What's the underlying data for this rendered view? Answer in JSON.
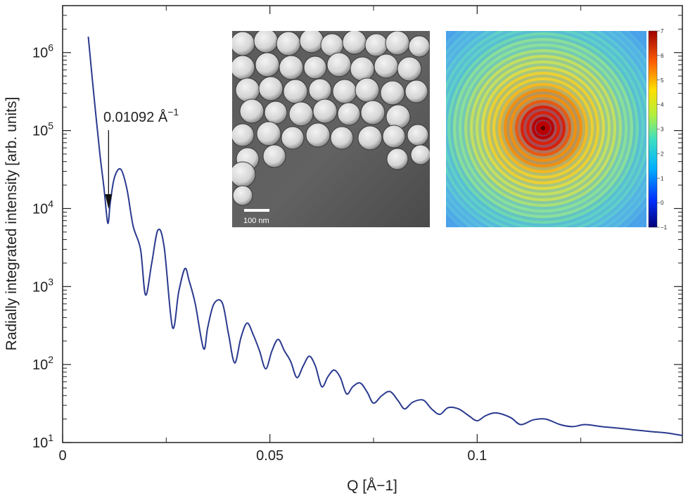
{
  "chart_data": {
    "type": "line",
    "xlabel": "Q [Å−1]",
    "ylabel": "Radially integrated intensity [arb. units]",
    "xlim": [
      0,
      0.1495
    ],
    "ylim": [
      10,
      4000000
    ],
    "yscale": "log",
    "x_ticks": [
      {
        "value": 0,
        "label": "0"
      },
      {
        "value": 0.05,
        "label": "0.05"
      },
      {
        "value": 0.1,
        "label": "0.1"
      }
    ],
    "y_ticks": [
      {
        "value": 10,
        "base": "10",
        "exp": "1"
      },
      {
        "value": 100,
        "base": "10",
        "exp": "2"
      },
      {
        "value": 1000,
        "base": "10",
        "exp": "3"
      },
      {
        "value": 10000,
        "base": "10",
        "exp": "4"
      },
      {
        "value": 100000,
        "base": "10",
        "exp": "5"
      },
      {
        "value": 1000000,
        "base": "10",
        "exp": "6"
      }
    ],
    "grid": false,
    "line_color": "#2a3a8f",
    "series": [
      {
        "x": [
          0.0062,
          0.0075,
          0.009,
          0.01,
          0.0109,
          0.0115,
          0.0125,
          0.014,
          0.0155,
          0.017,
          0.0188,
          0.02,
          0.0215,
          0.023,
          0.0245,
          0.0265,
          0.028,
          0.0295,
          0.0305,
          0.032,
          0.034,
          0.035,
          0.0365,
          0.0385,
          0.04,
          0.0415,
          0.043,
          0.0445,
          0.046,
          0.0475,
          0.049,
          0.0505,
          0.052,
          0.0535,
          0.055,
          0.0565,
          0.058,
          0.0595,
          0.061,
          0.0625,
          0.064,
          0.0655,
          0.067,
          0.0685,
          0.07,
          0.0718,
          0.0735,
          0.075,
          0.077,
          0.079,
          0.081,
          0.0825,
          0.0845,
          0.087,
          0.089,
          0.091,
          0.093,
          0.0955,
          0.098,
          0.1,
          0.102,
          0.1045,
          0.108,
          0.1105,
          0.1135,
          0.1165,
          0.12,
          0.123,
          0.126,
          0.13,
          0.134,
          0.138,
          0.142,
          0.146,
          0.1495
        ],
        "y": [
          1600000,
          300000,
          50000,
          18000,
          6500,
          12000,
          25000,
          32000,
          18000,
          6000,
          3000,
          780,
          2000,
          5300,
          3200,
          300,
          850,
          1700,
          1200,
          600,
          160,
          300,
          600,
          620,
          250,
          105,
          220,
          340,
          240,
          150,
          88,
          150,
          210,
          150,
          110,
          68,
          95,
          128,
          95,
          52,
          70,
          85,
          68,
          42,
          52,
          58,
          44,
          32,
          40,
          45,
          34,
          27,
          33,
          35,
          27,
          23,
          28,
          27,
          22,
          19,
          22,
          24,
          21,
          17,
          19.5,
          20,
          17,
          16,
          17,
          16,
          15.3,
          14.5,
          13.8,
          13.2,
          12.3
        ]
      }
    ],
    "annotation": {
      "text": "0.01092 Å",
      "sup": "−1",
      "x": 0.01092
    }
  },
  "inset_sem": {
    "scale_bar_label": "100 nm"
  },
  "inset_saxs": {
    "colorbar_ticks": [
      "7",
      "6",
      "5",
      "4",
      "3",
      "2",
      "1",
      "0",
      "−1"
    ],
    "colorbar_range": [
      -1,
      7
    ]
  }
}
